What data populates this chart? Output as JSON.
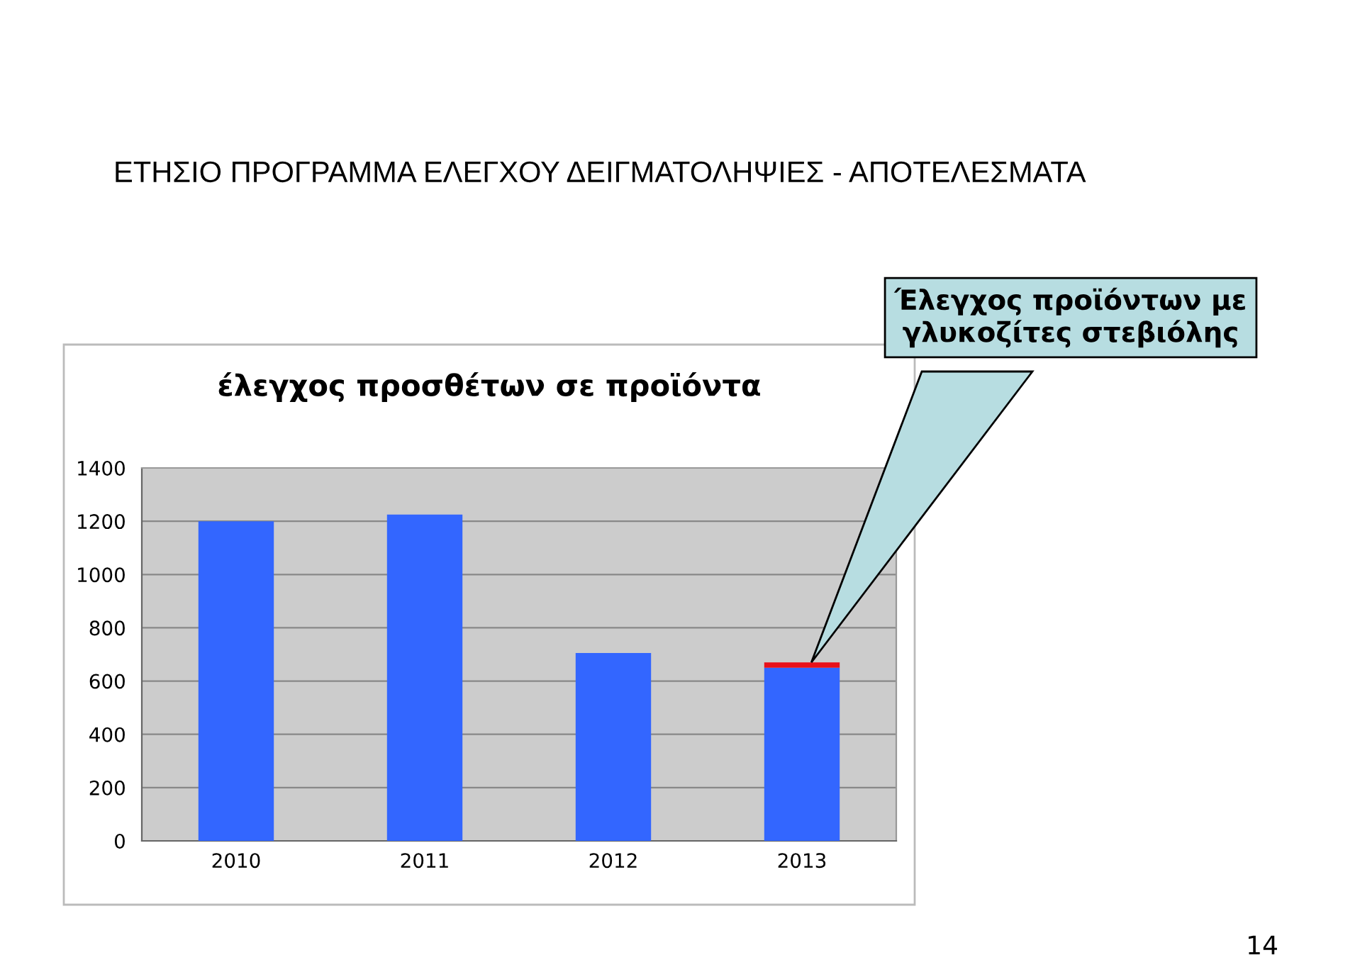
{
  "chart_data": {
    "type": "bar",
    "title": "ΕΤΗΣΙΟ ΠΡΟΓΡΑΜΜΑ ΕΛΕΓΧΟΥ ΔΕΙΓΜΑΤΟΛΗΨΙΕΣ - ΑΠΟΤΕΛΕΣΜΑΤΑ",
    "subtitle": "έλεγχος προσθέτων σε προϊόντα",
    "categories": [
      "2010",
      "2011",
      "2012",
      "2013"
    ],
    "stacked": true,
    "series": [
      {
        "color": "#3366ff",
        "values": [
          1200,
          1225,
          705,
          650
        ]
      },
      {
        "color": "#e8101a",
        "values": [
          null,
          null,
          null,
          20
        ]
      }
    ],
    "ylim": [
      0,
      1400
    ],
    "yticks": [
      0,
      200,
      400,
      600,
      800,
      1000,
      1200,
      1400
    ],
    "grid": "y",
    "annotations": [
      "Έλεγχος προϊόντων με\nγλυκοζίτες στεβιόλης",
      "14"
    ]
  }
}
